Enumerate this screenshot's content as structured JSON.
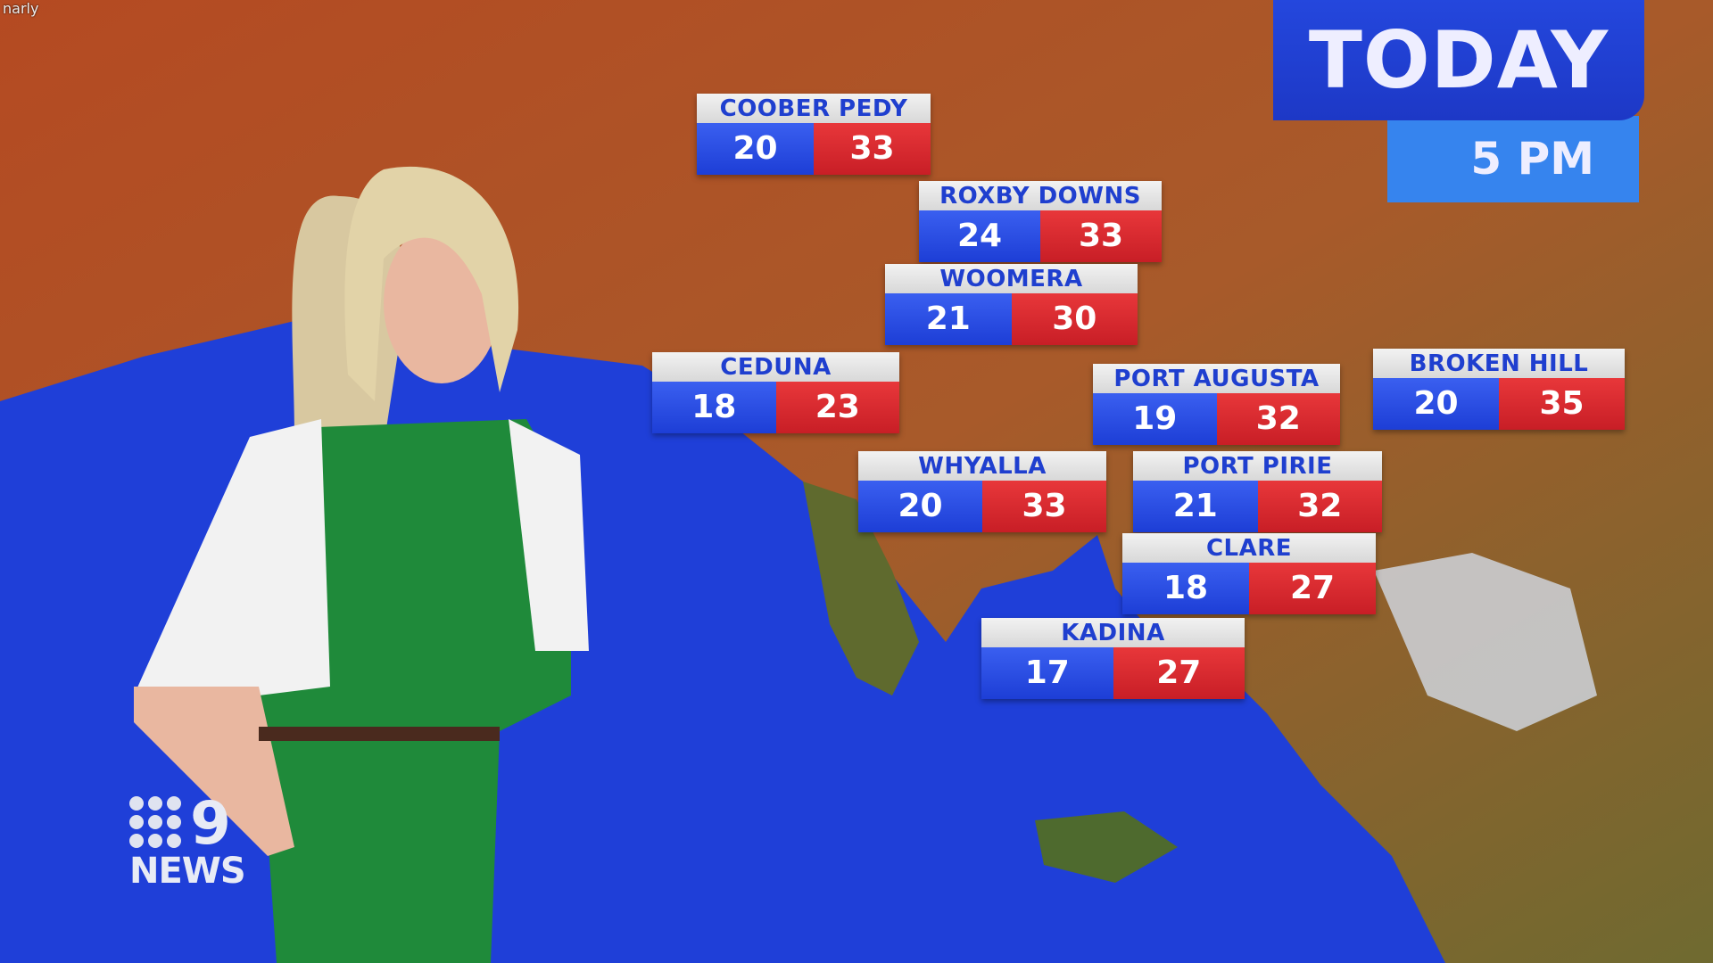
{
  "watermark": "narly",
  "header": {
    "title": "TODAY",
    "time": "5 PM"
  },
  "logo": {
    "text": "NEWS",
    "numeral": "9"
  },
  "cities": [
    {
      "name": "COOBER PEDY",
      "min": "20",
      "max": "33"
    },
    {
      "name": "ROXBY DOWNS",
      "min": "24",
      "max": "33"
    },
    {
      "name": "WOOMERA",
      "min": "21",
      "max": "30"
    },
    {
      "name": "CEDUNA",
      "min": "18",
      "max": "23"
    },
    {
      "name": "PORT AUGUSTA",
      "min": "19",
      "max": "32"
    },
    {
      "name": "BROKEN HILL",
      "min": "20",
      "max": "35"
    },
    {
      "name": "WHYALLA",
      "min": "20",
      "max": "33"
    },
    {
      "name": "PORT PIRIE",
      "min": "21",
      "max": "32"
    },
    {
      "name": "CLARE",
      "min": "18",
      "max": "27"
    },
    {
      "name": "KADINA",
      "min": "17",
      "max": "27"
    }
  ],
  "colors": {
    "min_temp": "#1d3ed6",
    "max_temp": "#c81e26",
    "title_bg": "#1d38c6",
    "time_bg": "#3684ee",
    "ocean": "#1f3fd8",
    "land": "#b4572a"
  }
}
